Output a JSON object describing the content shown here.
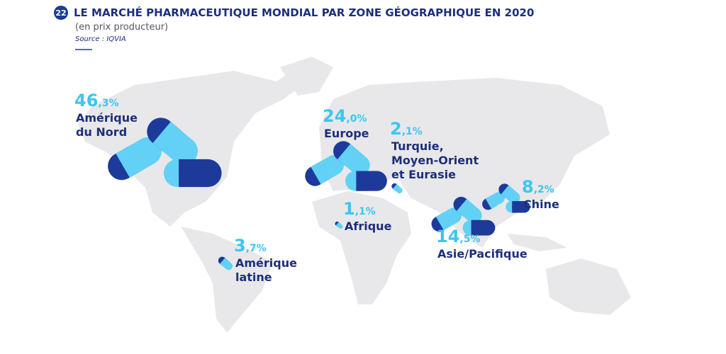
{
  "header": {
    "badge": "22",
    "title": "LE MARCHÉ PHARMACEUTIQUE MONDIAL PAR ZONE GÉOGRAPHIQUE EN 2020",
    "subtitle": "(en prix producteur)",
    "source": "Source : IQVIA"
  },
  "regions": [
    {
      "name": [
        "Amérique",
        "du Nord"
      ],
      "value": 46.3,
      "value_label": "46,3%"
    },
    {
      "name": [
        "Europe"
      ],
      "value": 24.0,
      "value_label": "24,0%"
    },
    {
      "name": [
        "Turquie,",
        "Moyen-Orient",
        "et Eurasie"
      ],
      "value": 2.1,
      "value_label": "2,1%"
    },
    {
      "name": [
        "Chine"
      ],
      "value": 8.2,
      "value_label": "8,2%"
    },
    {
      "name": [
        "Afrique"
      ],
      "value": 1.1,
      "value_label": "1,1%"
    },
    {
      "name": [
        "Asie/Pacifique"
      ],
      "value": 14.5,
      "value_label": "14,5%"
    },
    {
      "name": [
        "Amérique",
        "latine"
      ],
      "value": 3.7,
      "value_label": "3,7%"
    }
  ]
}
